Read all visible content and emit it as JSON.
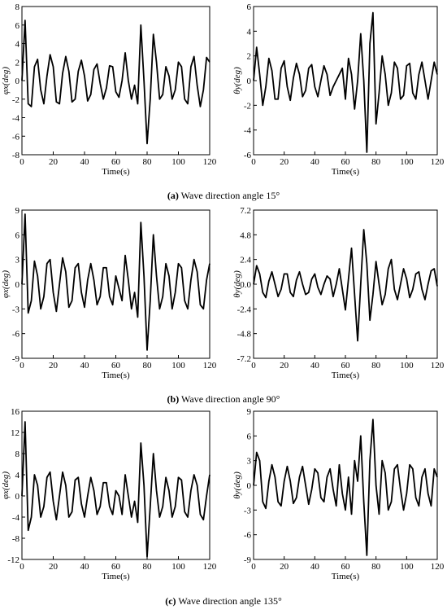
{
  "chart_data": [
    {
      "type": "line",
      "xlabel": "Time(s)",
      "ylabel": "φx(deg)",
      "x": [
        0,
        2,
        4,
        6,
        8,
        10,
        12,
        14,
        16,
        18,
        20,
        22,
        24,
        26,
        28,
        30,
        32,
        34,
        36,
        38,
        40,
        42,
        44,
        46,
        48,
        50,
        52,
        54,
        56,
        58,
        60,
        62,
        64,
        66,
        68,
        70,
        72,
        74,
        76,
        78,
        80,
        82,
        84,
        86,
        88,
        90,
        92,
        94,
        96,
        98,
        100,
        102,
        104,
        106,
        108,
        110,
        112,
        114,
        116,
        118,
        120
      ],
      "series": [
        {
          "color": "#000000",
          "values": [
            0,
            6.5,
            -2.5,
            -2.8,
            1.5,
            2.3,
            -1,
            -2.5,
            0.5,
            2.8,
            1.5,
            -2.3,
            -2.5,
            0.8,
            2.6,
            1,
            -2.3,
            -2,
            1,
            2.2,
            0.5,
            -2.2,
            -1.5,
            1.2,
            1.8,
            -0.3,
            -2,
            -0.8,
            1.6,
            1.5,
            -1.2,
            -1.8,
            0,
            3,
            0,
            -2,
            -0.5,
            -2.5,
            6,
            0,
            -6.8,
            -2,
            5,
            2,
            -2,
            -1.5,
            1.5,
            0.5,
            -2,
            -1,
            2,
            1.5,
            -2,
            -2.5,
            1.5,
            2.6,
            -0.5,
            -2.8,
            -1,
            2.5,
            2
          ]
        }
      ],
      "xlim": [
        0,
        120
      ],
      "ylim": [
        -8,
        8
      ],
      "xticks": [
        0,
        20,
        40,
        60,
        80,
        100,
        120
      ],
      "yticks": [
        -8,
        -6,
        -4,
        -2,
        0,
        2,
        4,
        6,
        8
      ]
    },
    {
      "type": "line",
      "xlabel": "Time(s)",
      "ylabel": "θy(deg)",
      "x": [
        0,
        2,
        4,
        6,
        8,
        10,
        12,
        14,
        16,
        18,
        20,
        22,
        24,
        26,
        28,
        30,
        32,
        34,
        36,
        38,
        40,
        42,
        44,
        46,
        48,
        50,
        52,
        54,
        56,
        58,
        60,
        62,
        64,
        66,
        68,
        70,
        72,
        74,
        76,
        78,
        80,
        82,
        84,
        86,
        88,
        90,
        92,
        94,
        96,
        98,
        100,
        102,
        104,
        106,
        108,
        110,
        112,
        114,
        116,
        118,
        120
      ],
      "series": [
        {
          "color": "#000000",
          "values": [
            0,
            2.7,
            0.5,
            -2,
            -0.5,
            1.8,
            0.8,
            -1.5,
            -1.5,
            1,
            1.6,
            -0.5,
            -1.6,
            0.2,
            1.4,
            0.5,
            -1.3,
            -0.8,
            1,
            1.3,
            -0.5,
            -1.3,
            0,
            1.2,
            0.5,
            -1.2,
            -0.5,
            0,
            0.5,
            1,
            -1.5,
            1.8,
            0.5,
            -2.3,
            0,
            3.8,
            0,
            -5.8,
            3,
            5.5,
            -3.5,
            -1,
            2,
            0.5,
            -2,
            -1,
            1.5,
            1,
            -1.5,
            -1.2,
            1.2,
            1.4,
            -1,
            -1.5,
            0.5,
            1.5,
            0,
            -1.5,
            0,
            1.5,
            0.5
          ]
        }
      ],
      "xlim": [
        0,
        120
      ],
      "ylim": [
        -6,
        6
      ],
      "xticks": [
        0,
        20,
        40,
        60,
        80,
        100,
        120
      ],
      "yticks": [
        -6,
        -4,
        -2,
        0,
        2,
        4,
        6
      ]
    },
    {
      "type": "line",
      "xlabel": "Time(s)",
      "ylabel": "φx(deg)",
      "x": [
        0,
        2,
        4,
        6,
        8,
        10,
        12,
        14,
        16,
        18,
        20,
        22,
        24,
        26,
        28,
        30,
        32,
        34,
        36,
        38,
        40,
        42,
        44,
        46,
        48,
        50,
        52,
        54,
        56,
        58,
        60,
        62,
        64,
        66,
        68,
        70,
        72,
        74,
        76,
        78,
        80,
        82,
        84,
        86,
        88,
        90,
        92,
        94,
        96,
        98,
        100,
        102,
        104,
        106,
        108,
        110,
        112,
        114,
        116,
        118,
        120
      ],
      "series": [
        {
          "color": "#000000",
          "values": [
            0,
            8.5,
            -3.5,
            -2,
            2.8,
            1,
            -3,
            -1.5,
            2.5,
            3,
            -1,
            -3.3,
            0,
            3.2,
            1.5,
            -2.8,
            -2,
            2,
            2.5,
            -1,
            -2.8,
            0.5,
            2.5,
            0.5,
            -2.5,
            -1.5,
            2,
            2,
            -1.5,
            -2.5,
            1,
            -0.5,
            -2,
            3.5,
            0.5,
            -3,
            -1,
            -4,
            7.5,
            1,
            -8,
            -2,
            6,
            1,
            -3,
            -1.5,
            2.5,
            1,
            -3,
            -1,
            2.5,
            2,
            -2,
            -3,
            0.5,
            3,
            1.5,
            -2.5,
            -3,
            0.5,
            2.5
          ]
        }
      ],
      "xlim": [
        0,
        120
      ],
      "ylim": [
        -9,
        9
      ],
      "xticks": [
        0,
        20,
        40,
        60,
        80,
        100,
        120
      ],
      "yticks": [
        -9,
        -6,
        -3,
        0,
        3,
        6,
        9
      ]
    },
    {
      "type": "line",
      "xlabel": "Time(s)",
      "ylabel": "θy(deg)",
      "x": [
        0,
        2,
        4,
        6,
        8,
        10,
        12,
        14,
        16,
        18,
        20,
        22,
        24,
        26,
        28,
        30,
        32,
        34,
        36,
        38,
        40,
        42,
        44,
        46,
        48,
        50,
        52,
        54,
        56,
        58,
        60,
        62,
        64,
        66,
        68,
        70,
        72,
        74,
        76,
        78,
        80,
        82,
        84,
        86,
        88,
        90,
        92,
        94,
        96,
        98,
        100,
        102,
        104,
        106,
        108,
        110,
        112,
        114,
        116,
        118,
        120
      ],
      "series": [
        {
          "color": "#000000",
          "values": [
            0,
            1.8,
            1,
            -0.8,
            -1.3,
            0.3,
            1.2,
            0,
            -1.2,
            -0.5,
            1,
            1,
            -0.8,
            -1.2,
            0.4,
            1.2,
            0,
            -1,
            -0.8,
            0.5,
            1,
            -0.3,
            -1,
            0,
            0.8,
            0.5,
            -1.2,
            0,
            1.5,
            -0.5,
            -2.5,
            0.5,
            3.5,
            -1,
            -5.5,
            0,
            5.3,
            2,
            -3.5,
            -1,
            2.2,
            0,
            -2,
            -1,
            1.5,
            2.4,
            -0.5,
            -1.5,
            0,
            1.5,
            0.5,
            -1.3,
            -0.5,
            1,
            1.2,
            -0.5,
            -1.5,
            0,
            1.3,
            1.5,
            -0.2
          ]
        }
      ],
      "xlim": [
        0,
        120
      ],
      "ylim": [
        -7.2,
        7.2
      ],
      "xticks": [
        0,
        20,
        40,
        60,
        80,
        100,
        120
      ],
      "yticks": [
        -7.2,
        -4.8,
        -2.4,
        {
          "value": 0,
          "label": "0.0"
        },
        2.4,
        4.8,
        7.2
      ]
    },
    {
      "type": "line",
      "xlabel": "Time(s)",
      "ylabel": "φx(deg)",
      "x": [
        0,
        2,
        4,
        6,
        8,
        10,
        12,
        14,
        16,
        18,
        20,
        22,
        24,
        26,
        28,
        30,
        32,
        34,
        36,
        38,
        40,
        42,
        44,
        46,
        48,
        50,
        52,
        54,
        56,
        58,
        60,
        62,
        64,
        66,
        68,
        70,
        72,
        74,
        76,
        78,
        80,
        82,
        84,
        86,
        88,
        90,
        92,
        94,
        96,
        98,
        100,
        102,
        104,
        106,
        108,
        110,
        112,
        114,
        116,
        118,
        120
      ],
      "series": [
        {
          "color": "#000000",
          "values": [
            0,
            14,
            -6.5,
            -4,
            4,
            2,
            -4,
            -2,
            3.5,
            4.5,
            -1,
            -4.5,
            0,
            4.5,
            2,
            -4,
            -3,
            3,
            3.5,
            -1.5,
            -4,
            0,
            3.5,
            1,
            -3.5,
            -2,
            2.5,
            2.5,
            -2,
            -3.5,
            1,
            0,
            -3.5,
            4,
            0,
            -4,
            -1,
            -5,
            10,
            2,
            -11.5,
            -2,
            8,
            1,
            -4,
            -2,
            3.5,
            1,
            -4,
            -2,
            3.5,
            3,
            -3,
            -4,
            1,
            4,
            2,
            -3.5,
            -4.5,
            0,
            4
          ]
        }
      ],
      "xlim": [
        0,
        120
      ],
      "ylim": [
        -12,
        16
      ],
      "xticks": [
        0,
        20,
        40,
        60,
        80,
        100,
        120
      ],
      "yticks": [
        -12,
        -8,
        -4,
        0,
        4,
        8,
        12,
        16
      ]
    },
    {
      "type": "line",
      "xlabel": "Time(s)",
      "ylabel": "θy(deg)",
      "x": [
        0,
        2,
        4,
        6,
        8,
        10,
        12,
        14,
        16,
        18,
        20,
        22,
        24,
        26,
        28,
        30,
        32,
        34,
        36,
        38,
        40,
        42,
        44,
        46,
        48,
        50,
        52,
        54,
        56,
        58,
        60,
        62,
        64,
        66,
        68,
        70,
        72,
        74,
        76,
        78,
        80,
        82,
        84,
        86,
        88,
        90,
        92,
        94,
        96,
        98,
        100,
        102,
        104,
        106,
        108,
        110,
        112,
        114,
        116,
        118,
        120
      ],
      "series": [
        {
          "color": "#000000",
          "values": [
            0,
            4,
            3,
            -2,
            -2.8,
            0.5,
            2.5,
            1,
            -2,
            -2.5,
            0.5,
            2.3,
            0.5,
            -2.2,
            -1.5,
            1,
            2.3,
            0,
            -2.3,
            -0.5,
            2,
            1.5,
            -1.5,
            -2,
            1,
            2,
            -0.5,
            -2.5,
            2.5,
            -1,
            -3,
            1,
            -3.5,
            3,
            0.5,
            6,
            -2,
            -8.5,
            3,
            8,
            0,
            -3.5,
            3,
            1.5,
            -3,
            -2,
            2,
            2.5,
            -0.5,
            -3,
            -1,
            2.5,
            2,
            -1.5,
            -2.5,
            1,
            2,
            -1,
            -2.5,
            2,
            1
          ]
        }
      ],
      "xlim": [
        0,
        120
      ],
      "ylim": [
        -9,
        9
      ],
      "xticks": [
        0,
        20,
        40,
        60,
        80,
        100,
        120
      ],
      "yticks": [
        -9,
        -6,
        -3,
        0,
        3,
        6,
        9
      ]
    }
  ],
  "captions": [
    {
      "label": "(a)",
      "text": "Wave direction angle 15°"
    },
    {
      "label": "(b)",
      "text": "Wave direction angle 90°"
    },
    {
      "label": "(c)",
      "text": "Wave direction angle 135°"
    }
  ]
}
